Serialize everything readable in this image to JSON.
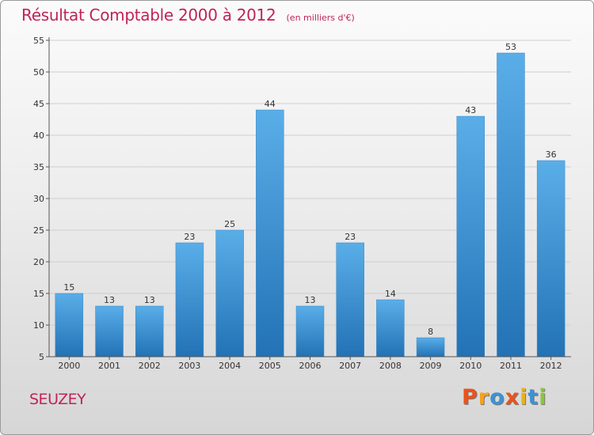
{
  "header": {
    "title": "Résultat Comptable 2000 à 2012",
    "subtitle": "(en milliers d'€)"
  },
  "footer": {
    "place": "SEUZEY",
    "logo_text": "Proxiti",
    "logo_colors": [
      "#e8541c",
      "#f7a21b",
      "#3c93d2",
      "#e8541c",
      "#e8b21b",
      "#3c93d2",
      "#8cc63f"
    ]
  },
  "chart_data": {
    "type": "bar",
    "title": "Résultat Comptable 2000 à 2012",
    "subtitle": "(en milliers d'€)",
    "xlabel": "",
    "ylabel": "",
    "categories": [
      "2000",
      "2001",
      "2002",
      "2003",
      "2004",
      "2005",
      "2006",
      "2007",
      "2008",
      "2009",
      "2010",
      "2011",
      "2012"
    ],
    "values": [
      15,
      13,
      13,
      23,
      25,
      44,
      13,
      23,
      14,
      8,
      43,
      53,
      36
    ],
    "ylim": [
      5,
      55
    ],
    "yticks": [
      5,
      10,
      15,
      20,
      25,
      30,
      35,
      40,
      45,
      50,
      55
    ],
    "grid": true,
    "bar_color_top": "#5aaee8",
    "bar_color_bottom": "#2272b5",
    "grid_color": "#cfcfcf"
  }
}
